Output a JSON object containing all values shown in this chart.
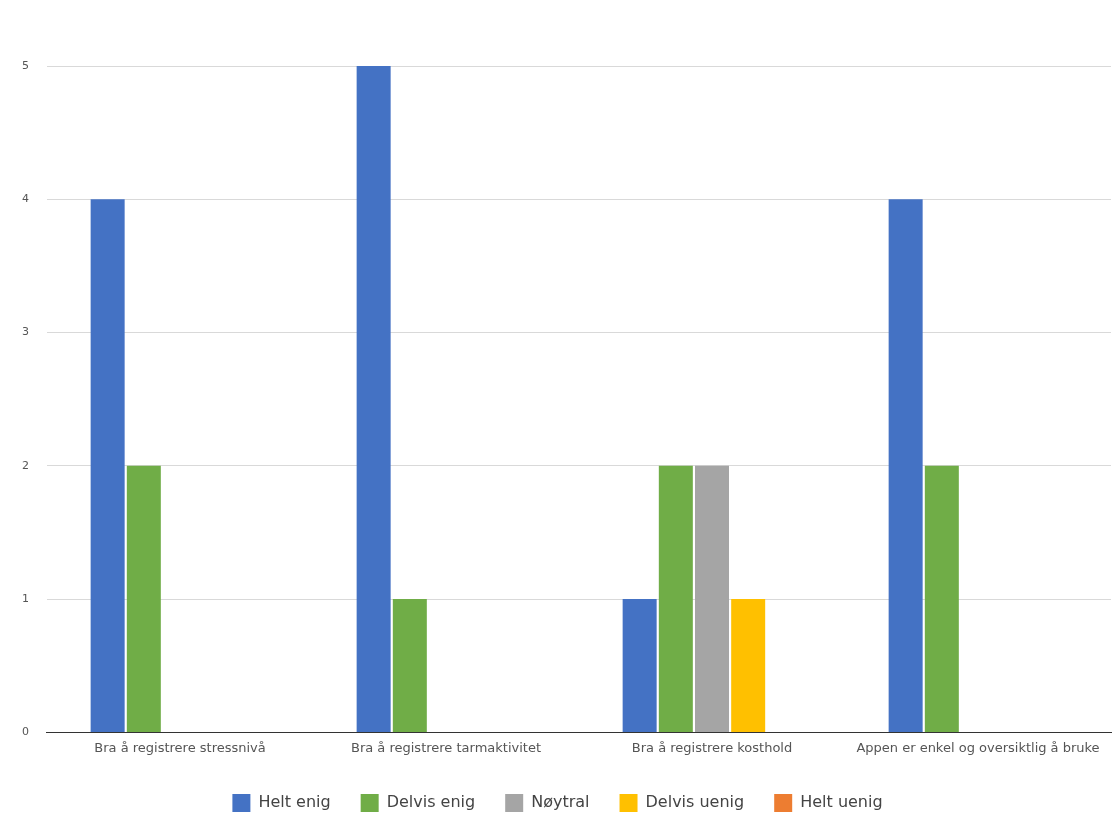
{
  "chart_data": {
    "type": "bar",
    "categories": [
      "Bra å registrere stressnivå",
      "Bra å registrere tarmaktivitet",
      "Bra å registrere kosthold",
      "Appen er enkel og oversiktlig å bruke"
    ],
    "series": [
      {
        "name": "Helt enig",
        "color": "#4472c4",
        "values": [
          4,
          5,
          1,
          4
        ]
      },
      {
        "name": "Delvis enig",
        "color": "#70ad47",
        "values": [
          2,
          1,
          2,
          2
        ]
      },
      {
        "name": "Nøytral",
        "color": "#a5a5a5",
        "values": [
          0,
          0,
          2,
          0
        ]
      },
      {
        "name": "Delvis uenig",
        "color": "#ffc000",
        "values": [
          0,
          0,
          1,
          0
        ]
      },
      {
        "name": "Helt uenig",
        "color": "#ed7d31",
        "values": [
          0,
          0,
          0,
          0
        ]
      }
    ],
    "ylim": [
      0,
      5
    ],
    "yticks": [
      0,
      1,
      2,
      3,
      4,
      5
    ],
    "grid": "y",
    "legend": "bottom"
  }
}
